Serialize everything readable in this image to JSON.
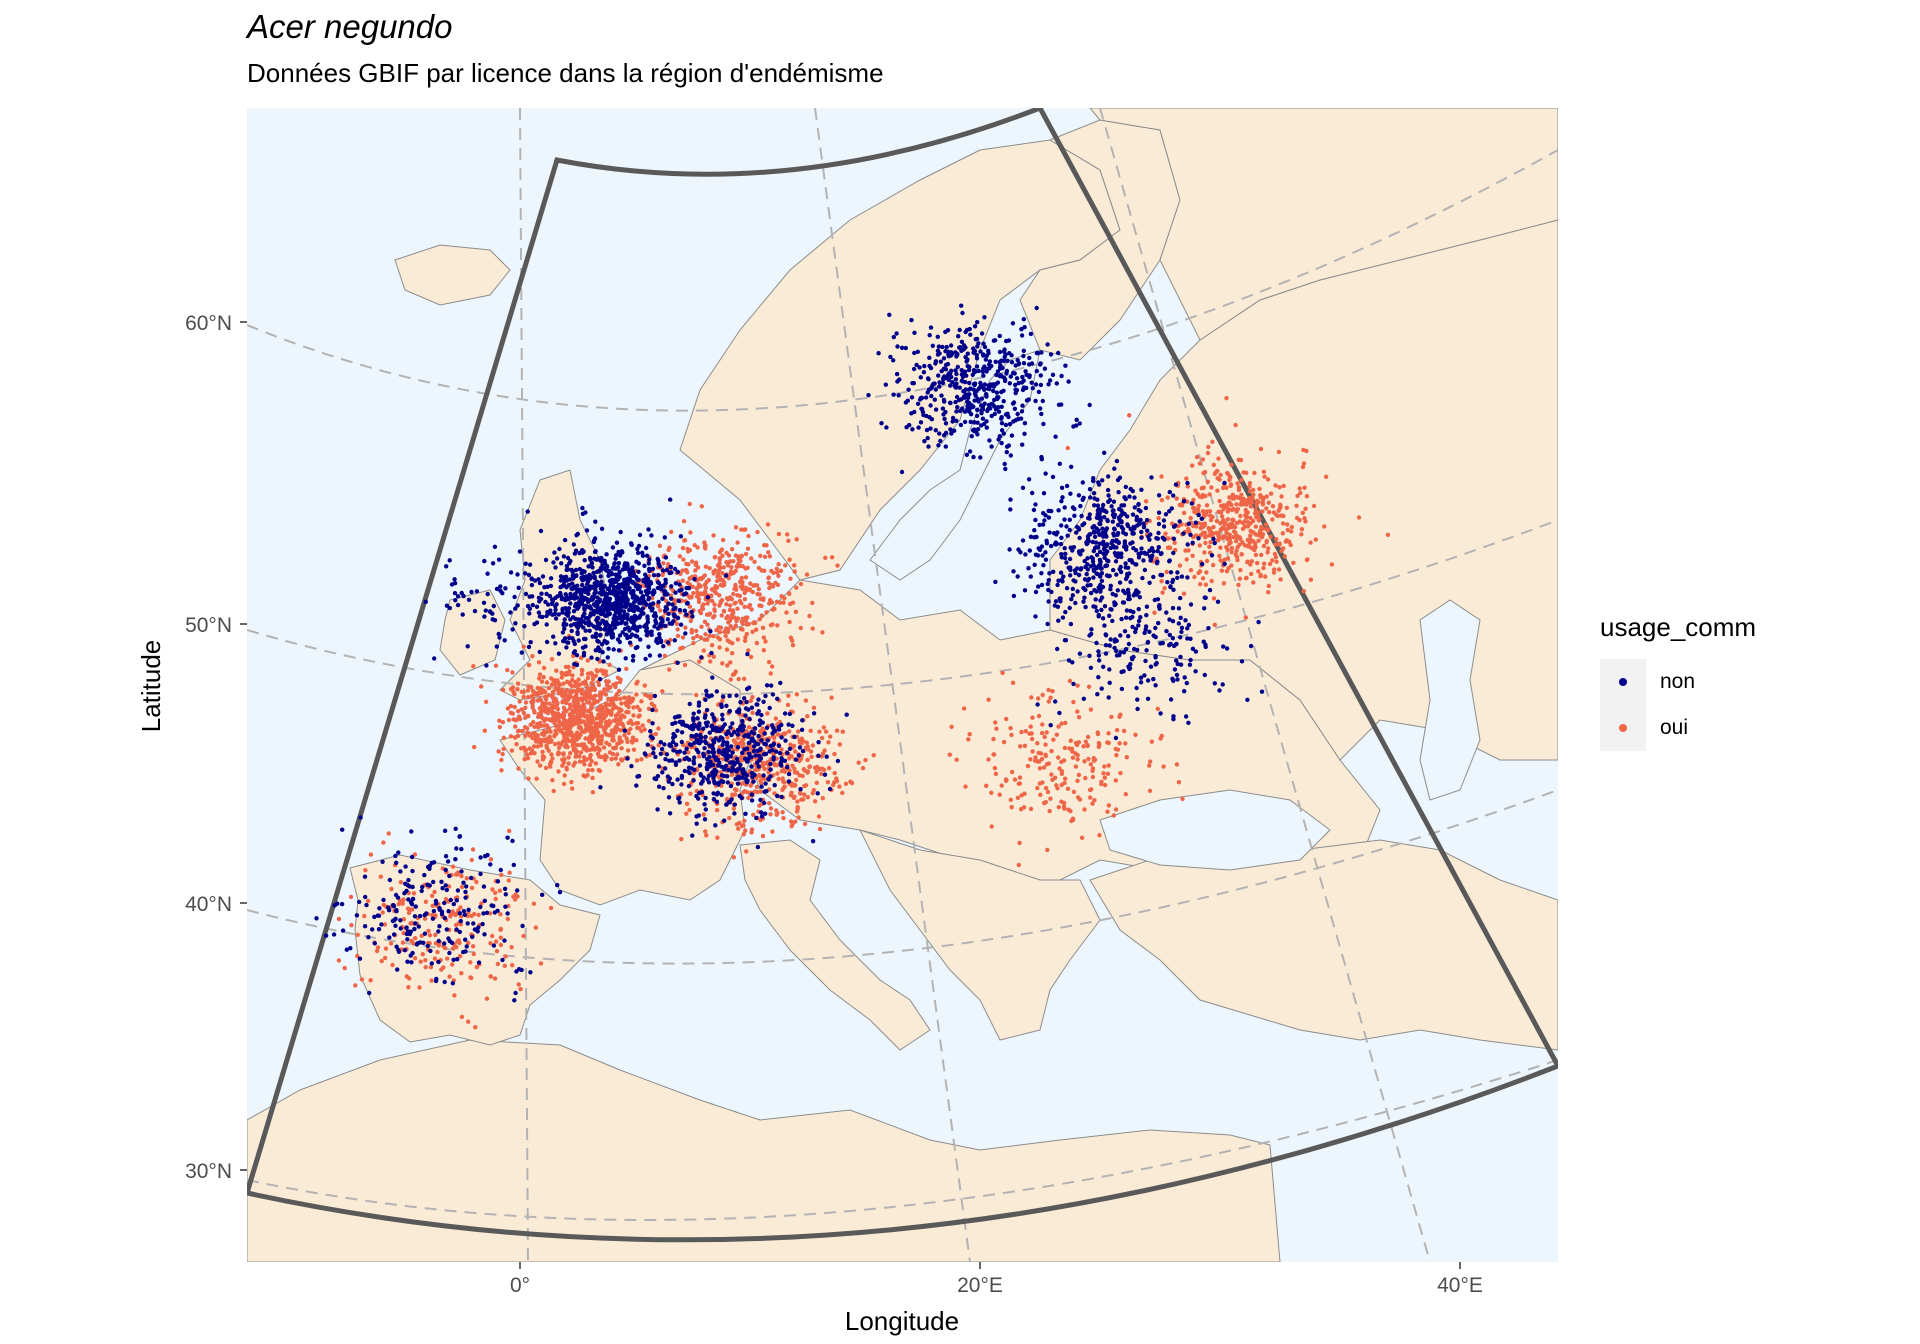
{
  "title": "Acer negundo",
  "subtitle": "Données GBIF par licence dans la région d'endémisme",
  "axes": {
    "xlabel": "Longitude",
    "ylabel": "Latitude",
    "x_ticks": [
      "0°",
      "20°E",
      "40°E"
    ],
    "y_ticks": [
      "60°N",
      "50°N",
      "40°N",
      "30°N"
    ]
  },
  "legend": {
    "title": "usage_comm",
    "items": [
      {
        "label": "non",
        "color": "#00008b"
      },
      {
        "label": "oui",
        "color": "#ef6548"
      }
    ]
  },
  "colors": {
    "sea": "#eef6fd",
    "land": "#faebd7",
    "border": "#8c8c8c",
    "graticule": "#b3b3b3",
    "region_outline": "#595959",
    "non": "#00008b",
    "oui": "#ef6548"
  },
  "chart_data": {
    "type": "scatter",
    "description_of_content": "GBIF occurrence points of Acer negundo in Europe, coloured by commercial-use licence",
    "x_range": [
      -12,
      44
    ],
    "y_range": [
      27,
      66
    ],
    "clusters": [
      {
        "usage_comm": "oui",
        "region": "France",
        "lon": 2.5,
        "lat": 47.0,
        "density": "very high"
      },
      {
        "usage_comm": "oui",
        "region": "Germany",
        "lon": 10.0,
        "lat": 51.0,
        "density": "high"
      },
      {
        "usage_comm": "oui",
        "region": "Northern Italy",
        "lon": 11.0,
        "lat": 45.0,
        "density": "high"
      },
      {
        "usage_comm": "oui",
        "region": "Spain",
        "lon": -3.5,
        "lat": 40.0,
        "density": "medium"
      },
      {
        "usage_comm": "oui",
        "region": "Romania",
        "lon": 25.0,
        "lat": 45.5,
        "density": "medium"
      },
      {
        "usage_comm": "oui",
        "region": "Moscow area",
        "lon": 37.5,
        "lat": 55.7,
        "density": "high"
      },
      {
        "usage_comm": "non",
        "region": "Belgium / Netherlands",
        "lon": 4.5,
        "lat": 51.0,
        "density": "very high"
      },
      {
        "usage_comm": "non",
        "region": "Northern Italy",
        "lon": 9.5,
        "lat": 45.5,
        "density": "high"
      },
      {
        "usage_comm": "non",
        "region": "Estonia",
        "lon": 25.0,
        "lat": 59.0,
        "density": "high"
      },
      {
        "usage_comm": "non",
        "region": "Belarus / Russia",
        "lon": 30.0,
        "lat": 54.0,
        "density": "high"
      },
      {
        "usage_comm": "non",
        "region": "Ukraine",
        "lon": 30.5,
        "lat": 50.5,
        "density": "medium"
      },
      {
        "usage_comm": "non",
        "region": "Madrid",
        "lon": -3.7,
        "lat": 40.4,
        "density": "medium"
      },
      {
        "usage_comm": "non",
        "region": "Southern England",
        "lon": -1.0,
        "lat": 51.5,
        "density": "low"
      }
    ]
  }
}
